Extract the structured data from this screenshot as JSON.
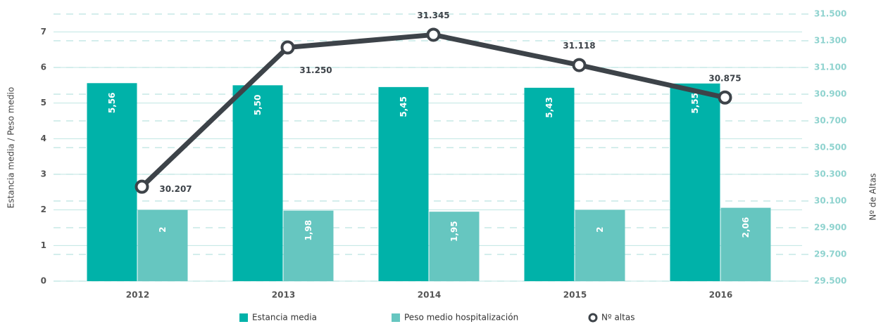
{
  "chart_data": {
    "type": "bar-line",
    "y_label": "Estancia media / Peso medio",
    "y2_label": "Nº de Altas",
    "categories": [
      "2012",
      "2013",
      "2014",
      "2015",
      "2016"
    ],
    "series": [
      {
        "name": "Estancia media",
        "color": "#00b2a9",
        "type": "bar",
        "values": [
          5.56,
          5.5,
          5.45,
          5.43,
          5.55
        ],
        "value_labels": [
          "5,56",
          "5,50",
          "5,45",
          "5,43",
          "5,55"
        ]
      },
      {
        "name": "Peso medio hospitalización",
        "color": "#66c6c0",
        "type": "bar",
        "values": [
          2,
          1.98,
          1.95,
          2,
          2.06
        ],
        "value_labels": [
          "2",
          "1,98",
          "1,95",
          "2",
          "2,06"
        ]
      },
      {
        "name": "Nº altas",
        "color": "#3d4349",
        "type": "line",
        "axis": "y2",
        "values": [
          30207,
          31250,
          31345,
          31118,
          30875
        ],
        "value_labels": [
          "30.207",
          "31.250",
          "31.345",
          "31.118",
          "30.875"
        ]
      }
    ],
    "ylim": [
      0,
      7.5
    ],
    "yticks": [
      0,
      1,
      2,
      3,
      4,
      5,
      6,
      7
    ],
    "y2lim": [
      29500,
      31500
    ],
    "y2ticks": [
      {
        "value": 29500,
        "label": "29.500"
      },
      {
        "value": 29700,
        "label": "29.700"
      },
      {
        "value": 29900,
        "label": "29.900"
      },
      {
        "value": 30100,
        "label": "30.100"
      },
      {
        "value": 30300,
        "label": "30.300"
      },
      {
        "value": 30500,
        "label": "30.500"
      },
      {
        "value": 30700,
        "label": "30.700"
      },
      {
        "value": 30900,
        "label": "30.900"
      },
      {
        "value": 31100,
        "label": "31.100"
      },
      {
        "value": 31300,
        "label": "31.300"
      },
      {
        "value": 31500,
        "label": "31.500"
      }
    ],
    "grid": true,
    "legend": "bottom"
  }
}
